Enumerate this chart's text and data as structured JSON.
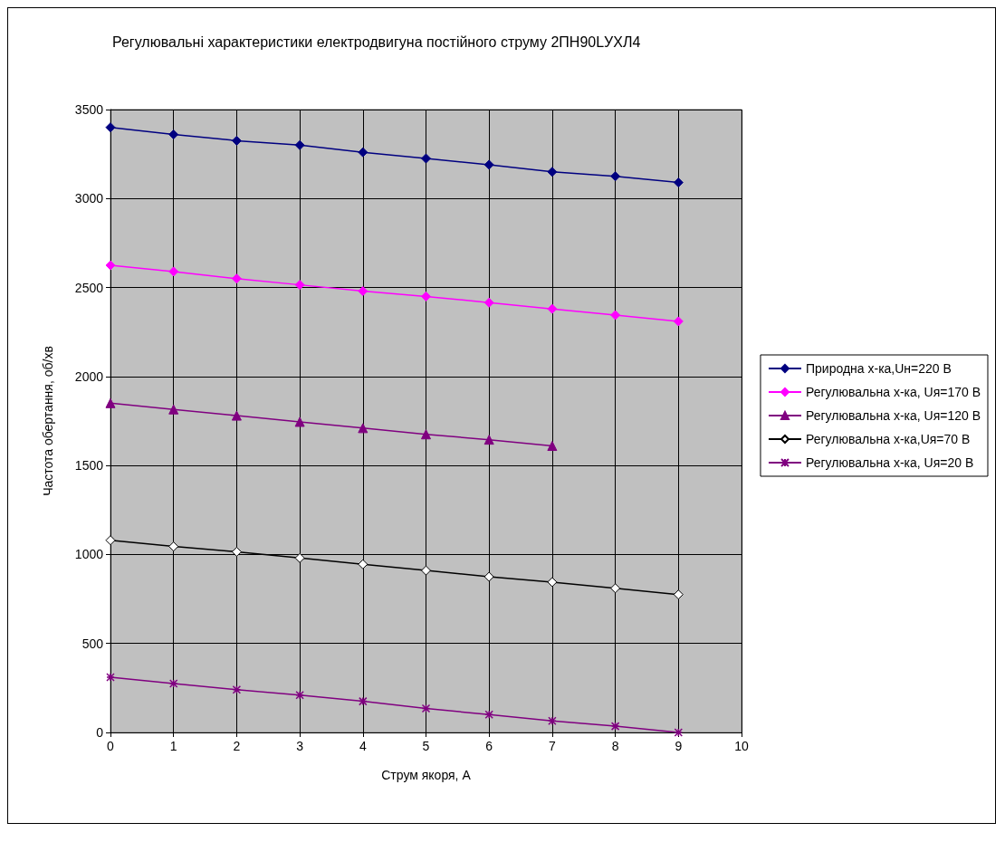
{
  "chart_data": {
    "type": "line",
    "title": "Регулювальні характеристики електродвигуна постійного струму 2ПН90LУХЛ4",
    "xlabel": "Струм якоря, А",
    "ylabel": "Частота обертання, об/хв",
    "x": [
      0,
      1,
      2,
      3,
      4,
      5,
      6,
      7,
      8,
      9
    ],
    "xlim": [
      0,
      10
    ],
    "xticks": [
      0,
      1,
      2,
      3,
      4,
      5,
      6,
      7,
      8,
      9,
      10
    ],
    "ylim": [
      0,
      3500
    ],
    "yticks": [
      0,
      500,
      1000,
      1500,
      2000,
      2500,
      3000,
      3500
    ],
    "grid": true,
    "legend": "right",
    "series": [
      {
        "name": "Природна х-ка,Uн=220 В",
        "color": "#000080",
        "marker": "diamond",
        "values": [
          3400,
          3360,
          3325,
          3300,
          3260,
          3225,
          3190,
          3150,
          3125,
          3090
        ]
      },
      {
        "name": "Регулювальна х-ка, Uя=170 В",
        "color": "#ff00ff",
        "marker": "diamond",
        "values": [
          2625,
          2590,
          2550,
          2515,
          2480,
          2450,
          2415,
          2380,
          2345,
          2310
        ]
      },
      {
        "name": "Регулювальна х-ка, Uя=120 В",
        "color": "#800080",
        "marker": "triangle",
        "values": [
          1850,
          1815,
          1780,
          1745,
          1710,
          1675,
          1645,
          1610,
          null,
          null
        ]
      },
      {
        "name": "Регулювальна х-ка,Uя=70 В",
        "color": "#000000",
        "marker": "diamond",
        "values": [
          1080,
          1045,
          1015,
          980,
          945,
          910,
          875,
          845,
          810,
          775
        ]
      },
      {
        "name": "Регулювальна х-ка, Uя=20 В",
        "color": "#800080",
        "marker": "cross",
        "values": [
          310,
          275,
          240,
          210,
          175,
          135,
          100,
          65,
          35,
          0
        ]
      }
    ]
  }
}
